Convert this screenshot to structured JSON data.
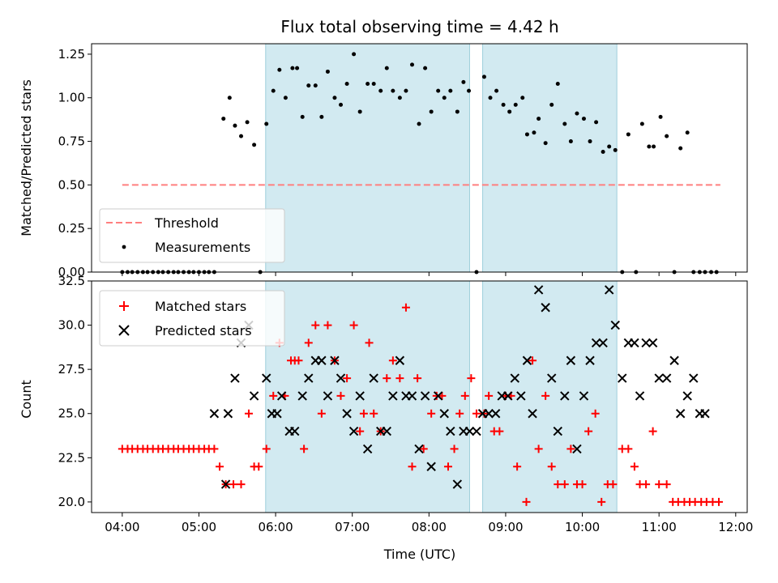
{
  "chart_data": [
    {
      "type": "scatter",
      "title": "Flux total observing time = 4.42 h",
      "xlabel": "",
      "ylabel": "Matched/Predicted stars",
      "xlim": [
        3.6,
        12.15
      ],
      "ylim": [
        0,
        1.31
      ],
      "yticks": [
        0,
        0.25,
        0.5,
        0.75,
        1.0,
        1.25
      ],
      "ytick_labels": [
        "0.00",
        "0.25",
        "0.50",
        "0.75",
        "1.00",
        "1.25"
      ],
      "grid": false,
      "legend": "lower-left",
      "shaded_spans_hours": [
        [
          5.87,
          8.53
        ],
        [
          8.7,
          10.45
        ]
      ],
      "series": [
        {
          "name": "Threshold",
          "style": "dashed-line",
          "color": "#ff7f7f",
          "x": [
            4.0,
            11.8
          ],
          "y": [
            0.5,
            0.5
          ]
        },
        {
          "name": "Measurements",
          "style": "dot",
          "color": "#000000",
          "x": [
            4.0,
            4.07,
            4.13,
            4.2,
            4.27,
            4.33,
            4.4,
            4.47,
            4.53,
            4.6,
            4.67,
            4.73,
            4.8,
            4.87,
            4.93,
            5.0,
            5.07,
            5.13,
            5.2,
            5.32,
            5.4,
            5.47,
            5.55,
            5.63,
            5.72,
            5.8,
            5.88,
            5.97,
            6.05,
            6.13,
            6.22,
            6.28,
            6.35,
            6.43,
            6.52,
            6.6,
            6.68,
            6.77,
            6.85,
            6.93,
            7.02,
            7.1,
            7.2,
            7.28,
            7.37,
            7.45,
            7.53,
            7.62,
            7.7,
            7.78,
            7.87,
            7.95,
            8.03,
            8.12,
            8.2,
            8.28,
            8.37,
            8.45,
            8.52,
            8.62,
            8.72,
            8.8,
            8.88,
            8.97,
            9.05,
            9.13,
            9.22,
            9.28,
            9.37,
            9.43,
            9.52,
            9.6,
            9.68,
            9.77,
            9.85,
            9.93,
            10.02,
            10.1,
            10.18,
            10.27,
            10.35,
            10.43,
            10.52,
            10.6,
            10.7,
            10.78,
            10.87,
            10.93,
            11.02,
            11.1,
            11.2,
            11.28,
            11.37,
            11.45,
            11.53,
            11.6,
            11.68,
            11.75
          ],
          "y": [
            0,
            0,
            0,
            0,
            0,
            0,
            0,
            0,
            0,
            0,
            0,
            0,
            0,
            0,
            0,
            0,
            0,
            0,
            0,
            0.88,
            1.0,
            0.84,
            0.78,
            0.86,
            0.73,
            0,
            0.85,
            1.04,
            1.16,
            1.0,
            1.17,
            1.17,
            0.89,
            1.07,
            1.07,
            0.89,
            1.15,
            1.0,
            0.96,
            1.08,
            1.25,
            0.92,
            1.08,
            1.08,
            1.04,
            1.17,
            1.04,
            1.0,
            1.04,
            1.19,
            0.85,
            1.17,
            0.92,
            1.04,
            1.0,
            1.04,
            0.92,
            1.09,
            1.04,
            0,
            1.12,
            1.0,
            1.04,
            0.96,
            0.92,
            0.96,
            1.0,
            0.79,
            0.8,
            0.88,
            0.74,
            0.96,
            1.08,
            0.85,
            0.75,
            0.91,
            0.88,
            0.75,
            0.86,
            0.69,
            0.72,
            0.7,
            0,
            0.79,
            0,
            0.85,
            0.72,
            0.72,
            0.89,
            0.78,
            0,
            0.71,
            0.8,
            0,
            0,
            0,
            0,
            0
          ]
        }
      ]
    },
    {
      "type": "scatter",
      "title": "",
      "xlabel": "Time (UTC)",
      "ylabel": "Count",
      "xlim": [
        3.6,
        12.15
      ],
      "ylim": [
        19.4,
        32.5
      ],
      "yticks": [
        20.0,
        22.5,
        25.0,
        27.5,
        30.0,
        32.5
      ],
      "ytick_labels": [
        "20.0",
        "22.5",
        "25.0",
        "27.5",
        "30.0",
        "32.5"
      ],
      "xticks": [
        4,
        5,
        6,
        7,
        8,
        9,
        10,
        11,
        12
      ],
      "xtick_labels": [
        "04:00",
        "05:00",
        "06:00",
        "07:00",
        "08:00",
        "09:00",
        "10:00",
        "11:00",
        "12:00"
      ],
      "grid": false,
      "legend": "upper-left",
      "shaded_spans_hours": [
        [
          5.87,
          8.53
        ],
        [
          8.7,
          10.45
        ]
      ],
      "series": [
        {
          "name": "Matched stars",
          "marker": "plus",
          "color": "#ff0000",
          "x": [
            4.0,
            4.07,
            4.13,
            4.2,
            4.27,
            4.33,
            4.4,
            4.47,
            4.53,
            4.6,
            4.67,
            4.73,
            4.8,
            4.87,
            4.93,
            5.0,
            5.07,
            5.13,
            5.2,
            5.27,
            5.35,
            5.45,
            5.55,
            5.65,
            5.72,
            5.78,
            5.88,
            5.97,
            6.05,
            6.12,
            6.2,
            6.25,
            6.3,
            6.37,
            6.43,
            6.52,
            6.6,
            6.68,
            6.77,
            6.85,
            6.93,
            7.02,
            7.1,
            7.15,
            7.22,
            7.28,
            7.37,
            7.45,
            7.53,
            7.62,
            7.7,
            7.78,
            7.85,
            7.93,
            8.03,
            8.1,
            8.17,
            8.25,
            8.33,
            8.4,
            8.47,
            8.55,
            8.62,
            8.72,
            8.78,
            8.85,
            8.92,
            9.0,
            9.07,
            9.15,
            9.27,
            9.35,
            9.43,
            9.52,
            9.6,
            9.68,
            9.77,
            9.85,
            9.93,
            10.0,
            10.08,
            10.17,
            10.25,
            10.33,
            10.4,
            10.52,
            10.6,
            10.68,
            10.75,
            10.83,
            10.92,
            11.0,
            11.1,
            11.18,
            11.25,
            11.33,
            11.4,
            11.47,
            11.55,
            11.62,
            11.7,
            11.78
          ],
          "y": [
            23,
            23,
            23,
            23,
            23,
            23,
            23,
            23,
            23,
            23,
            23,
            23,
            23,
            23,
            23,
            23,
            23,
            23,
            23,
            22,
            21,
            21,
            21,
            25,
            22,
            22,
            23,
            26,
            29,
            26,
            28,
            28,
            28,
            23,
            29,
            30,
            25,
            30,
            28,
            26,
            27,
            30,
            24,
            25,
            29,
            25,
            24,
            27,
            28,
            27,
            31,
            22,
            27,
            23,
            25,
            26,
            26,
            22,
            23,
            25,
            26,
            27,
            25,
            25,
            26,
            24,
            24,
            26,
            26,
            22,
            20,
            28,
            23,
            26,
            22,
            21,
            21,
            23,
            21,
            21,
            24,
            25,
            20,
            21,
            21,
            23,
            23,
            22,
            21,
            21,
            24,
            21,
            21,
            20,
            20,
            20,
            20,
            20,
            20,
            20,
            20,
            20
          ]
        },
        {
          "name": "Predicted stars",
          "marker": "x",
          "color": "#000000",
          "x": [
            5.2,
            5.35,
            5.38,
            5.47,
            5.55,
            5.65,
            5.72,
            5.88,
            5.95,
            6.02,
            6.08,
            6.18,
            6.25,
            6.35,
            6.43,
            6.52,
            6.6,
            6.68,
            6.77,
            6.85,
            6.93,
            7.02,
            7.1,
            7.2,
            7.28,
            7.37,
            7.45,
            7.53,
            7.62,
            7.7,
            7.78,
            7.87,
            7.95,
            8.03,
            8.12,
            8.2,
            8.28,
            8.37,
            8.45,
            8.53,
            8.62,
            8.7,
            8.78,
            8.87,
            8.95,
            9.03,
            9.12,
            9.2,
            9.28,
            9.35,
            9.43,
            9.52,
            9.6,
            9.68,
            9.77,
            9.85,
            9.93,
            10.02,
            10.1,
            10.18,
            10.27,
            10.35,
            10.43,
            10.52,
            10.6,
            10.68,
            10.75,
            10.83,
            10.92,
            11.0,
            11.1,
            11.2,
            11.28,
            11.37,
            11.45,
            11.53,
            11.6
          ],
          "y": [
            25,
            21,
            25,
            27,
            29,
            30,
            26,
            27,
            25,
            25,
            26,
            24,
            24,
            26,
            27,
            28,
            28,
            26,
            28,
            27,
            25,
            24,
            26,
            23,
            27,
            24,
            24,
            26,
            28,
            26,
            26,
            23,
            26,
            22,
            26,
            25,
            24,
            21,
            24,
            24,
            24,
            25,
            25,
            25,
            26,
            26,
            27,
            26,
            28,
            25,
            32,
            31,
            27,
            24,
            26,
            28,
            23,
            26,
            28,
            29,
            29,
            32,
            30,
            27,
            29,
            29,
            26,
            29,
            29,
            27,
            27,
            28,
            25,
            26,
            27,
            25,
            25
          ]
        }
      ]
    }
  ]
}
